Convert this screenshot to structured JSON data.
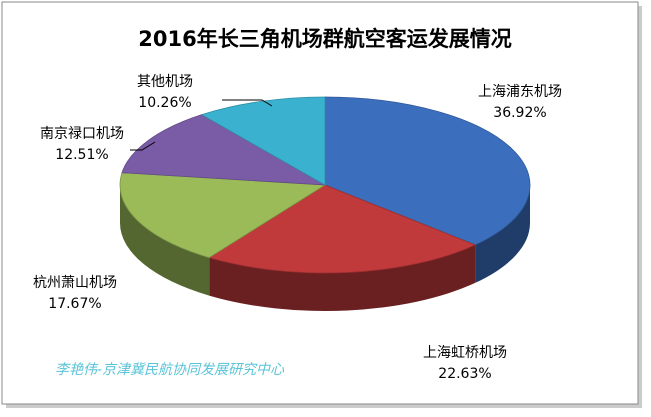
{
  "chart_data": {
    "type": "pie3d",
    "title": "2016年长三角机场群航空客运发展情况",
    "categories": [
      "上海浦东机场",
      "上海虹桥机场",
      "杭州萧山机场",
      "南京禄口机场",
      "其他机场"
    ],
    "values": [
      36.92,
      22.63,
      17.67,
      12.51,
      10.26
    ],
    "value_labels": [
      "36.92%",
      "22.63%",
      "17.67%",
      "12.51%",
      "10.26%"
    ],
    "colors": [
      "#3b6fbe",
      "#c0393b",
      "#9bbb59",
      "#7a5ca6",
      "#3bb1d0"
    ],
    "watermark": "李艳伟-京津冀民航协同发展研究中心"
  }
}
